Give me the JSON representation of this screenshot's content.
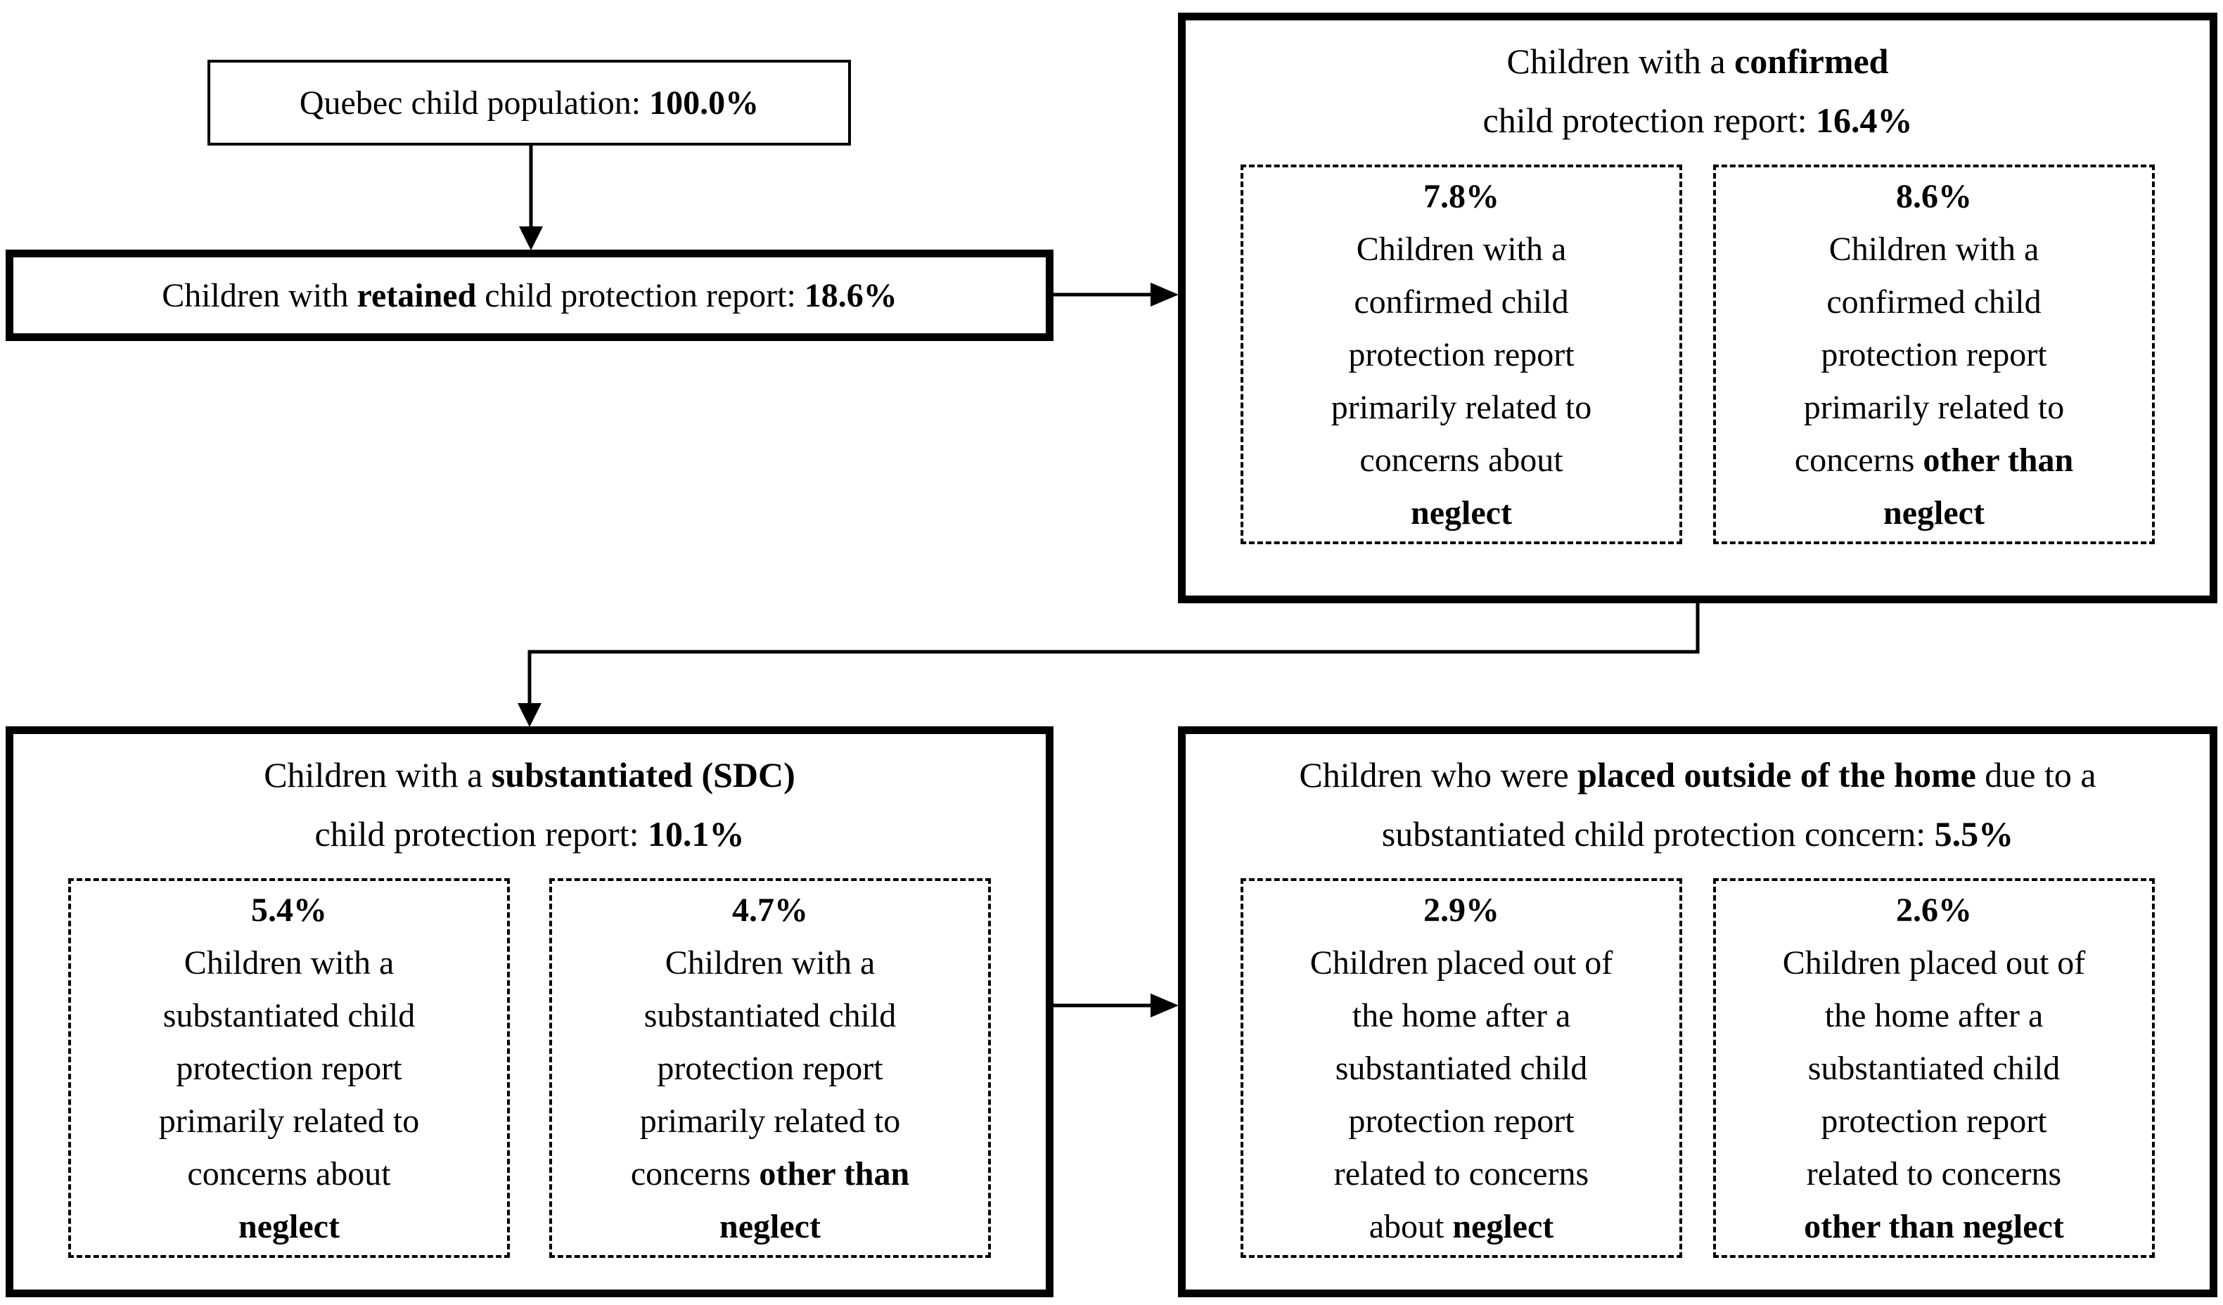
{
  "colors": {
    "background": "#ffffff",
    "line": "#000000",
    "text": "#000000"
  },
  "boxes": {
    "quebec": {
      "lines": [
        [
          {
            "t": "Quebec child population: "
          },
          {
            "t": "100.0%",
            "b": true
          }
        ]
      ]
    },
    "retained": {
      "lines": [
        [
          {
            "t": "Children with "
          },
          {
            "t": "retained",
            "b": true
          },
          {
            "t": " child protection report: "
          },
          {
            "t": "18.6%",
            "b": true
          }
        ]
      ]
    },
    "confirmed": {
      "header": [
        [
          {
            "t": "Children with a "
          },
          {
            "t": "confirmed",
            "b": true
          }
        ],
        [
          {
            "t": "child protection report: "
          },
          {
            "t": "16.4%",
            "b": true
          }
        ]
      ],
      "neglect": {
        "lines": [
          [
            {
              "t": "7.8%",
              "b": true
            }
          ],
          [
            {
              "t": "Children with a"
            }
          ],
          [
            {
              "t": "confirmed child"
            }
          ],
          [
            {
              "t": "protection report"
            }
          ],
          [
            {
              "t": "primarily related to"
            }
          ],
          [
            {
              "t": "concerns about"
            }
          ],
          [
            {
              "t": "neglect",
              "b": true
            }
          ]
        ]
      },
      "other_than_neglect": {
        "lines": [
          [
            {
              "t": "8.6%",
              "b": true
            }
          ],
          [
            {
              "t": "Children with a"
            }
          ],
          [
            {
              "t": "confirmed child"
            }
          ],
          [
            {
              "t": "protection report"
            }
          ],
          [
            {
              "t": "primarily related to"
            }
          ],
          [
            {
              "t": "concerns "
            },
            {
              "t": "other than",
              "b": true
            }
          ],
          [
            {
              "t": "neglect",
              "b": true
            }
          ]
        ]
      }
    },
    "substantiated": {
      "header": [
        [
          {
            "t": "Children with a "
          },
          {
            "t": "substantiated (SDC)",
            "b": true
          }
        ],
        [
          {
            "t": "child protection report: "
          },
          {
            "t": "10.1%",
            "b": true
          }
        ]
      ],
      "neglect": {
        "lines": [
          [
            {
              "t": "5.4%",
              "b": true
            }
          ],
          [
            {
              "t": "Children with a"
            }
          ],
          [
            {
              "t": "substantiated child"
            }
          ],
          [
            {
              "t": "protection report"
            }
          ],
          [
            {
              "t": "primarily related to"
            }
          ],
          [
            {
              "t": "concerns about"
            }
          ],
          [
            {
              "t": "neglect",
              "b": true
            }
          ]
        ]
      },
      "other_than_neglect": {
        "lines": [
          [
            {
              "t": "4.7%",
              "b": true
            }
          ],
          [
            {
              "t": "Children with a"
            }
          ],
          [
            {
              "t": "substantiated child"
            }
          ],
          [
            {
              "t": "protection report"
            }
          ],
          [
            {
              "t": "primarily related to"
            }
          ],
          [
            {
              "t": "concerns "
            },
            {
              "t": "other than",
              "b": true
            }
          ],
          [
            {
              "t": "neglect",
              "b": true
            }
          ]
        ]
      }
    },
    "placed": {
      "header": [
        [
          {
            "t": "Children who were "
          },
          {
            "t": "placed outside of the home",
            "b": true
          },
          {
            "t": " due to a"
          }
        ],
        [
          {
            "t": "substantiated child protection concern: "
          },
          {
            "t": "5.5%",
            "b": true
          }
        ]
      ],
      "neglect": {
        "lines": [
          [
            {
              "t": "2.9%",
              "b": true
            }
          ],
          [
            {
              "t": "Children placed out of"
            }
          ],
          [
            {
              "t": "the home after a"
            }
          ],
          [
            {
              "t": "substantiated child"
            }
          ],
          [
            {
              "t": "protection report"
            }
          ],
          [
            {
              "t": "related to concerns"
            }
          ],
          [
            {
              "t": "about "
            },
            {
              "t": "neglect",
              "b": true
            }
          ]
        ]
      },
      "other_than_neglect": {
        "lines": [
          [
            {
              "t": "2.6%",
              "b": true
            }
          ],
          [
            {
              "t": "Children placed out of"
            }
          ],
          [
            {
              "t": "the home after a"
            }
          ],
          [
            {
              "t": "substantiated child"
            }
          ],
          [
            {
              "t": "protection report"
            }
          ],
          [
            {
              "t": "related to concerns"
            }
          ],
          [
            {
              "t": "other than neglect",
              "b": true
            }
          ]
        ]
      }
    }
  }
}
